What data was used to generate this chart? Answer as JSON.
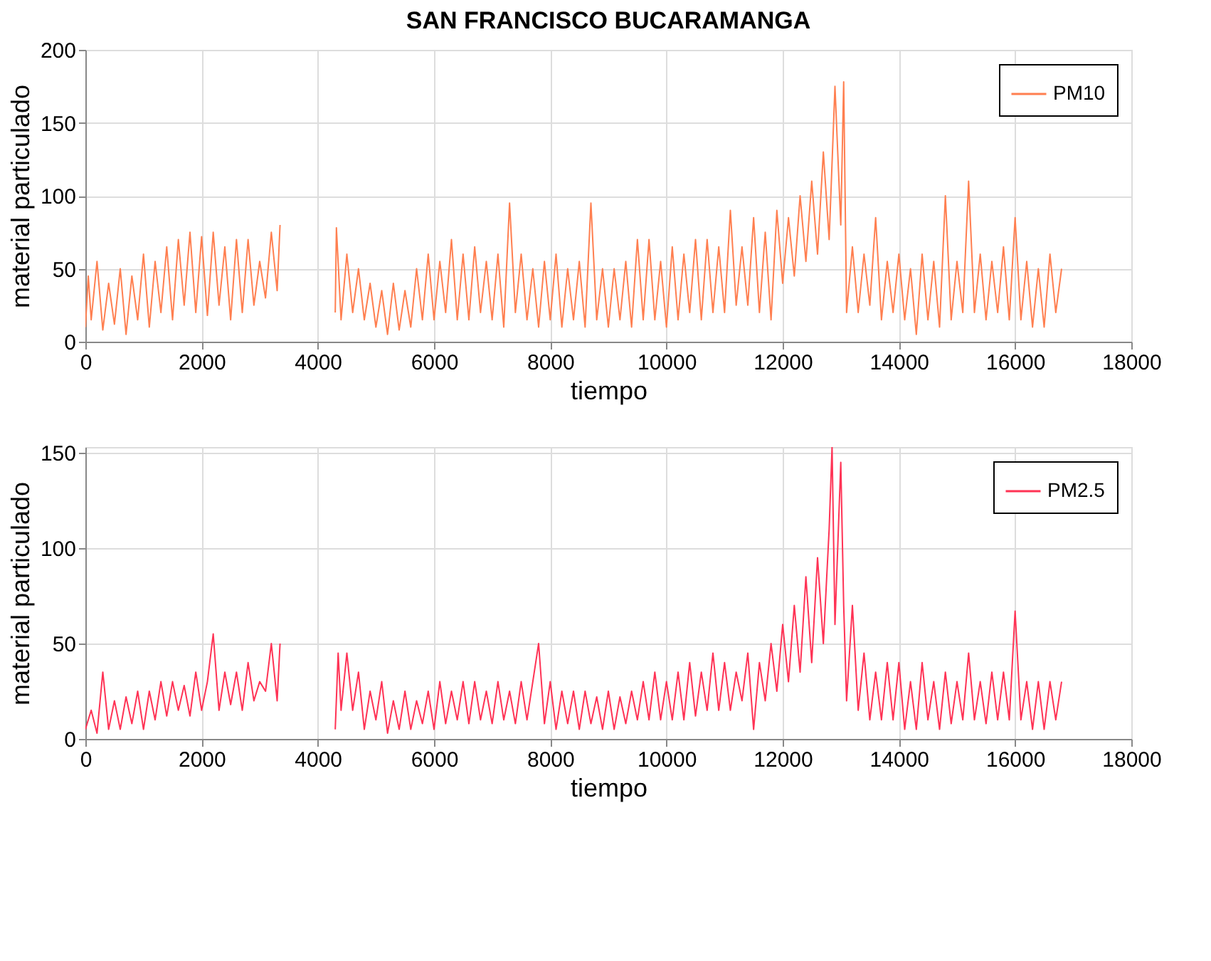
{
  "chart_data": [
    {
      "type": "line",
      "title": "SAN FRANCISCO BUCARAMANGA",
      "xlabel": "tiempo",
      "ylabel": "material particulado",
      "xlim": [
        0,
        18000
      ],
      "xticks": [
        0,
        2000,
        4000,
        6000,
        8000,
        10000,
        12000,
        14000,
        16000,
        18000
      ],
      "ylim": [
        0,
        200
      ],
      "yticks": [
        0,
        50,
        100,
        150,
        200
      ],
      "grid": true,
      "legend": "top right",
      "x": [
        0,
        50,
        100,
        200,
        300,
        400,
        500,
        600,
        700,
        800,
        900,
        1000,
        1100,
        1200,
        1300,
        1400,
        1500,
        1600,
        1700,
        1800,
        1900,
        2000,
        2100,
        2200,
        2300,
        2400,
        2500,
        2600,
        2700,
        2800,
        2900,
        3000,
        3100,
        3200,
        3300,
        3350,
        3800,
        4300,
        4320,
        4400,
        4500,
        4600,
        4700,
        4800,
        4900,
        5000,
        5100,
        5200,
        5300,
        5400,
        5500,
        5600,
        5700,
        5800,
        5900,
        6000,
        6100,
        6200,
        6300,
        6400,
        6500,
        6600,
        6700,
        6800,
        6900,
        7000,
        7100,
        7200,
        7300,
        7400,
        7500,
        7600,
        7700,
        7800,
        7900,
        8000,
        8100,
        8200,
        8300,
        8400,
        8500,
        8600,
        8700,
        8800,
        8900,
        9000,
        9100,
        9200,
        9300,
        9400,
        9500,
        9600,
        9700,
        9800,
        9900,
        10000,
        10100,
        10200,
        10300,
        10400,
        10500,
        10600,
        10700,
        10800,
        10900,
        11000,
        11100,
        11200,
        11300,
        11400,
        11500,
        11600,
        11700,
        11800,
        11900,
        12000,
        12100,
        12200,
        12300,
        12400,
        12500,
        12600,
        12700,
        12800,
        12900,
        13000,
        13050,
        13100,
        13200,
        13300,
        13400,
        13500,
        13600,
        13700,
        13800,
        13900,
        14000,
        14100,
        14200,
        14300,
        14400,
        14500,
        14600,
        14700,
        14800,
        14900,
        15000,
        15100,
        15200,
        15300,
        15400,
        15500,
        15600,
        15700,
        15800,
        15900,
        16000,
        16100,
        16200,
        16300,
        16400,
        16500,
        16600,
        16700,
        16800
      ],
      "series": [
        {
          "name": "PM10",
          "color": "#ff7f50",
          "values": [
            10,
            45,
            15,
            55,
            8,
            40,
            12,
            50,
            5,
            45,
            15,
            60,
            10,
            55,
            20,
            65,
            15,
            70,
            25,
            75,
            20,
            72,
            18,
            75,
            25,
            65,
            15,
            70,
            20,
            70,
            25,
            55,
            30,
            75,
            35,
            80,
            null,
            20,
            78,
            15,
            60,
            20,
            50,
            15,
            40,
            10,
            35,
            5,
            40,
            8,
            35,
            10,
            50,
            15,
            60,
            15,
            55,
            20,
            70,
            15,
            60,
            15,
            65,
            20,
            55,
            15,
            60,
            10,
            95,
            20,
            60,
            15,
            50,
            10,
            55,
            15,
            60,
            10,
            50,
            15,
            55,
            10,
            95,
            15,
            50,
            10,
            50,
            15,
            55,
            10,
            70,
            15,
            70,
            15,
            55,
            10,
            65,
            15,
            60,
            20,
            70,
            15,
            70,
            20,
            65,
            20,
            90,
            25,
            65,
            25,
            85,
            20,
            75,
            15,
            90,
            40,
            85,
            45,
            100,
            55,
            110,
            60,
            130,
            70,
            175,
            80,
            178,
            20,
            65,
            20,
            60,
            25,
            85,
            15,
            55,
            20,
            60,
            15,
            50,
            5,
            60,
            15,
            55,
            10,
            100,
            15,
            55,
            20,
            110,
            20,
            60,
            15,
            55,
            20,
            65,
            15,
            85,
            15,
            55,
            10,
            50,
            10,
            60,
            20,
            50
          ]
        }
      ]
    },
    {
      "type": "line",
      "xlabel": "tiempo",
      "ylabel": "material particulado",
      "xlim": [
        0,
        18000
      ],
      "xticks": [
        0,
        2000,
        4000,
        6000,
        8000,
        10000,
        12000,
        14000,
        16000,
        18000
      ],
      "ylim": [
        0,
        153
      ],
      "yticks": [
        0,
        50,
        100,
        150
      ],
      "grid": true,
      "legend": "top right",
      "x": [
        0,
        100,
        200,
        300,
        400,
        500,
        600,
        700,
        800,
        900,
        1000,
        1100,
        1200,
        1300,
        1400,
        1500,
        1600,
        1700,
        1800,
        1900,
        2000,
        2100,
        2200,
        2300,
        2400,
        2500,
        2600,
        2700,
        2800,
        2900,
        3000,
        3100,
        3200,
        3300,
        3350,
        3800,
        4300,
        4350,
        4400,
        4500,
        4600,
        4700,
        4800,
        4900,
        5000,
        5100,
        5200,
        5300,
        5400,
        5500,
        5600,
        5700,
        5800,
        5900,
        6000,
        6100,
        6200,
        6300,
        6400,
        6500,
        6600,
        6700,
        6800,
        6900,
        7000,
        7100,
        7200,
        7300,
        7400,
        7500,
        7600,
        7700,
        7800,
        7900,
        8000,
        8100,
        8200,
        8300,
        8400,
        8500,
        8600,
        8700,
        8800,
        8900,
        9000,
        9100,
        9200,
        9300,
        9400,
        9500,
        9600,
        9700,
        9800,
        9900,
        10000,
        10100,
        10200,
        10300,
        10400,
        10500,
        10600,
        10700,
        10800,
        10900,
        11000,
        11100,
        11200,
        11300,
        11400,
        11500,
        11600,
        11700,
        11800,
        11900,
        12000,
        12100,
        12200,
        12300,
        12400,
        12500,
        12600,
        12700,
        12800,
        12850,
        12900,
        13000,
        13050,
        13100,
        13200,
        13300,
        13400,
        13500,
        13600,
        13700,
        13800,
        13900,
        14000,
        14100,
        14200,
        14300,
        14400,
        14500,
        14600,
        14700,
        14800,
        14900,
        15000,
        15100,
        15200,
        15300,
        15400,
        15500,
        15600,
        15700,
        15800,
        15900,
        16000,
        16100,
        16200,
        16300,
        16400,
        16500,
        16600,
        16700,
        16800
      ],
      "series": [
        {
          "name": "PM2.5",
          "color": "#ff3355",
          "values": [
            5,
            15,
            3,
            35,
            5,
            20,
            5,
            22,
            8,
            25,
            5,
            25,
            10,
            30,
            12,
            30,
            15,
            28,
            12,
            35,
            15,
            30,
            55,
            15,
            35,
            18,
            35,
            15,
            40,
            20,
            30,
            25,
            50,
            20,
            50,
            null,
            5,
            45,
            15,
            45,
            15,
            35,
            5,
            25,
            10,
            30,
            3,
            20,
            5,
            25,
            5,
            20,
            8,
            25,
            5,
            30,
            8,
            25,
            10,
            30,
            8,
            30,
            10,
            25,
            8,
            30,
            10,
            25,
            8,
            30,
            10,
            30,
            50,
            8,
            30,
            5,
            25,
            8,
            25,
            5,
            25,
            8,
            22,
            5,
            25,
            5,
            22,
            8,
            25,
            10,
            30,
            10,
            35,
            10,
            30,
            10,
            35,
            10,
            40,
            12,
            35,
            15,
            45,
            15,
            40,
            15,
            35,
            20,
            45,
            5,
            40,
            20,
            50,
            25,
            60,
            30,
            70,
            35,
            85,
            40,
            95,
            50,
            110,
            153,
            60,
            145,
            70,
            20,
            70,
            15,
            45,
            10,
            35,
            10,
            40,
            10,
            40,
            5,
            30,
            5,
            40,
            10,
            30,
            5,
            35,
            8,
            30,
            10,
            45,
            10,
            30,
            8,
            35,
            10,
            35,
            10,
            67,
            10,
            30,
            5,
            30,
            5,
            30,
            10,
            30
          ]
        }
      ]
    }
  ]
}
